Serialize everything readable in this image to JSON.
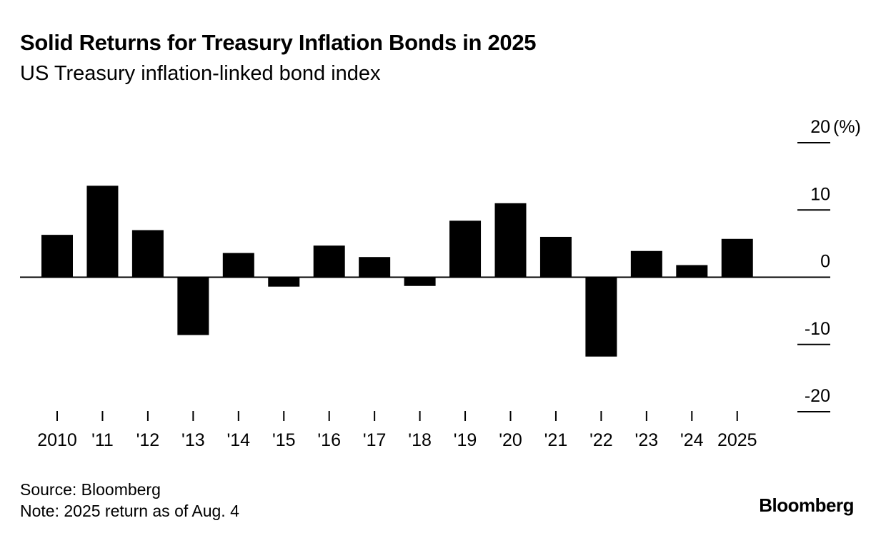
{
  "header": {
    "title": "Solid Returns for Treasury Inflation Bonds in 2025",
    "subtitle": "US Treasury inflation-linked bond index"
  },
  "footer": {
    "source": "Source: Bloomberg",
    "note": "Note: 2025 return as of Aug. 4",
    "logo": "Bloomberg"
  },
  "colors": {
    "bar": "#000000",
    "axis": "#000000",
    "background": "#ffffff"
  },
  "chart_data": {
    "type": "bar",
    "title": "Solid Returns for Treasury Inflation Bonds in 2025",
    "subtitle": "US Treasury inflation-linked bond index",
    "categories": [
      "2010",
      "'11",
      "'12",
      "'13",
      "'14",
      "'15",
      "'16",
      "'17",
      "'18",
      "'19",
      "'20",
      "'21",
      "'22",
      "'23",
      "'24",
      "2025"
    ],
    "values": [
      6.3,
      13.6,
      7.0,
      -8.6,
      3.6,
      -1.4,
      4.7,
      3.0,
      -1.3,
      8.4,
      11.0,
      6.0,
      -11.8,
      3.9,
      1.8,
      5.7
    ],
    "ylim": [
      -20,
      20
    ],
    "yticks": [
      20,
      10,
      0,
      -10,
      -20
    ],
    "ytick_labels": [
      "20",
      "10",
      "0",
      "-10",
      "-20"
    ],
    "yunit": "(%)",
    "y_axis_position": "right",
    "grid": false,
    "legend": "none"
  }
}
